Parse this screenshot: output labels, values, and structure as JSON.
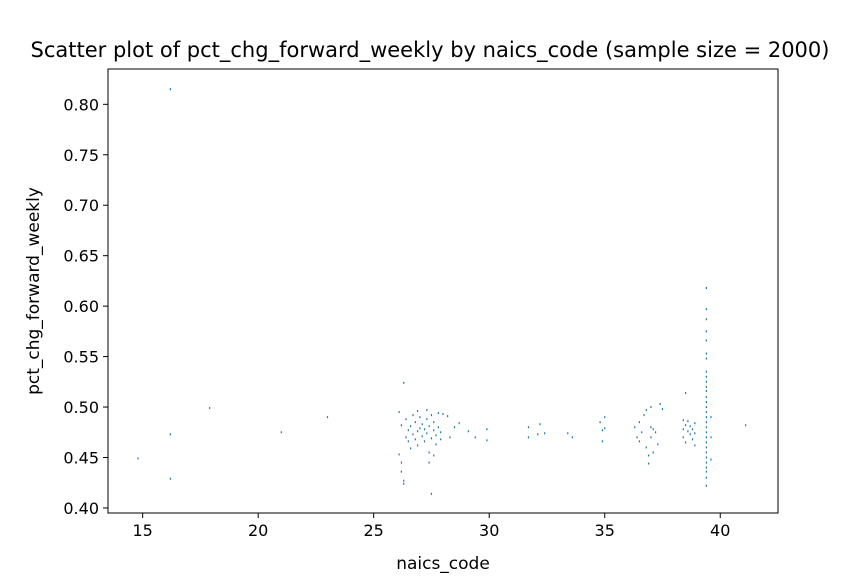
{
  "chart_data": {
    "type": "scatter",
    "title": "Scatter plot of pct_chg_forward_weekly by naics_code (sample size = 2000)",
    "xlabel": "naics_code",
    "ylabel": "pct_chg_forward_weekly",
    "xlim": [
      13.5,
      42.5
    ],
    "ylim": [
      0.395,
      0.835
    ],
    "xticks": [
      15,
      20,
      25,
      30,
      35,
      40
    ],
    "xtick_labels": [
      "15",
      "20",
      "25",
      "30",
      "35",
      "40"
    ],
    "yticks": [
      0.4,
      0.45,
      0.5,
      0.55,
      0.6,
      0.65,
      0.7,
      0.75,
      0.8
    ],
    "ytick_labels": [
      "0.40",
      "0.45",
      "0.50",
      "0.55",
      "0.60",
      "0.65",
      "0.70",
      "0.75",
      "0.80"
    ],
    "grid": false,
    "marker_color": "#1f77b4",
    "clusters_note": "",
    "series": [
      {
        "points": [
          [
            14.8,
            0.449
          ],
          [
            16.2,
            0.815
          ],
          [
            16.2,
            0.473
          ],
          [
            16.2,
            0.429
          ],
          [
            17.9,
            0.499
          ],
          [
            21.0,
            0.475
          ],
          [
            23.0,
            0.49
          ],
          [
            26.1,
            0.453
          ],
          [
            26.2,
            0.445
          ],
          [
            26.2,
            0.436
          ],
          [
            26.3,
            0.427
          ],
          [
            26.3,
            0.424
          ],
          [
            26.3,
            0.524
          ],
          [
            26.1,
            0.495
          ],
          [
            26.2,
            0.482
          ],
          [
            26.4,
            0.47
          ],
          [
            26.4,
            0.488
          ],
          [
            26.5,
            0.477
          ],
          [
            26.5,
            0.466
          ],
          [
            26.6,
            0.481
          ],
          [
            26.6,
            0.459
          ],
          [
            26.7,
            0.492
          ],
          [
            26.7,
            0.473
          ],
          [
            26.8,
            0.468
          ],
          [
            26.8,
            0.485
          ],
          [
            26.9,
            0.476
          ],
          [
            26.9,
            0.462
          ],
          [
            27.0,
            0.479
          ],
          [
            27.0,
            0.49
          ],
          [
            27.1,
            0.471
          ],
          [
            27.1,
            0.483
          ],
          [
            27.2,
            0.466
          ],
          [
            27.2,
            0.478
          ],
          [
            27.3,
            0.488
          ],
          [
            27.3,
            0.474
          ],
          [
            27.4,
            0.455
          ],
          [
            27.4,
            0.481
          ],
          [
            27.5,
            0.469
          ],
          [
            27.5,
            0.492
          ],
          [
            27.6,
            0.477
          ],
          [
            27.6,
            0.485
          ],
          [
            27.7,
            0.472
          ],
          [
            27.7,
            0.463
          ],
          [
            27.8,
            0.48
          ],
          [
            27.8,
            0.494
          ],
          [
            27.9,
            0.475
          ],
          [
            27.9,
            0.468
          ],
          [
            27.6,
            0.452
          ],
          [
            27.4,
            0.445
          ],
          [
            27.5,
            0.414
          ],
          [
            27.3,
            0.497
          ],
          [
            26.9,
            0.496
          ],
          [
            28.0,
            0.493
          ],
          [
            28.2,
            0.491
          ],
          [
            28.3,
            0.47
          ],
          [
            28.5,
            0.48
          ],
          [
            28.7,
            0.484
          ],
          [
            29.1,
            0.476
          ],
          [
            29.4,
            0.47
          ],
          [
            29.9,
            0.478
          ],
          [
            29.9,
            0.467
          ],
          [
            31.7,
            0.48
          ],
          [
            31.7,
            0.47
          ],
          [
            32.1,
            0.473
          ],
          [
            32.2,
            0.483
          ],
          [
            32.4,
            0.474
          ],
          [
            33.4,
            0.474
          ],
          [
            33.6,
            0.47
          ],
          [
            34.8,
            0.485
          ],
          [
            34.9,
            0.477
          ],
          [
            34.9,
            0.466
          ],
          [
            35.0,
            0.49
          ],
          [
            35.0,
            0.479
          ],
          [
            36.3,
            0.48
          ],
          [
            36.4,
            0.47
          ],
          [
            36.5,
            0.485
          ],
          [
            36.5,
            0.466
          ],
          [
            36.6,
            0.475
          ],
          [
            36.7,
            0.492
          ],
          [
            36.8,
            0.46
          ],
          [
            36.8,
            0.497
          ],
          [
            36.9,
            0.444
          ],
          [
            36.9,
            0.452
          ],
          [
            37.0,
            0.5
          ],
          [
            37.0,
            0.48
          ],
          [
            37.0,
            0.47
          ],
          [
            37.1,
            0.478
          ],
          [
            37.1,
            0.455
          ],
          [
            37.2,
            0.475
          ],
          [
            37.3,
            0.463
          ],
          [
            37.4,
            0.503
          ],
          [
            37.5,
            0.498
          ],
          [
            38.4,
            0.487
          ],
          [
            38.4,
            0.478
          ],
          [
            38.4,
            0.47
          ],
          [
            38.5,
            0.514
          ],
          [
            38.5,
            0.482
          ],
          [
            38.5,
            0.465
          ],
          [
            38.6,
            0.476
          ],
          [
            38.6,
            0.486
          ],
          [
            38.7,
            0.473
          ],
          [
            38.7,
            0.481
          ],
          [
            38.8,
            0.478
          ],
          [
            38.8,
            0.468
          ],
          [
            38.9,
            0.484
          ],
          [
            38.9,
            0.474
          ],
          [
            38.9,
            0.462
          ],
          [
            39.4,
            0.618
          ],
          [
            39.4,
            0.597
          ],
          [
            39.4,
            0.587
          ],
          [
            39.4,
            0.575
          ],
          [
            39.4,
            0.566
          ],
          [
            39.4,
            0.553
          ],
          [
            39.4,
            0.548
          ],
          [
            39.4,
            0.535
          ],
          [
            39.4,
            0.53
          ],
          [
            39.4,
            0.525
          ],
          [
            39.4,
            0.52
          ],
          [
            39.4,
            0.516
          ],
          [
            39.4,
            0.51
          ],
          [
            39.4,
            0.505
          ],
          [
            39.4,
            0.5
          ],
          [
            39.4,
            0.495
          ],
          [
            39.4,
            0.49
          ],
          [
            39.4,
            0.485
          ],
          [
            39.4,
            0.48
          ],
          [
            39.4,
            0.475
          ],
          [
            39.4,
            0.47
          ],
          [
            39.4,
            0.465
          ],
          [
            39.4,
            0.46
          ],
          [
            39.4,
            0.455
          ],
          [
            39.4,
            0.45
          ],
          [
            39.4,
            0.445
          ],
          [
            39.4,
            0.44
          ],
          [
            39.4,
            0.436
          ],
          [
            39.4,
            0.43
          ],
          [
            39.4,
            0.422
          ],
          [
            39.6,
            0.49
          ],
          [
            39.6,
            0.47
          ],
          [
            39.6,
            0.448
          ],
          [
            41.1,
            0.482
          ]
        ]
      }
    ]
  }
}
